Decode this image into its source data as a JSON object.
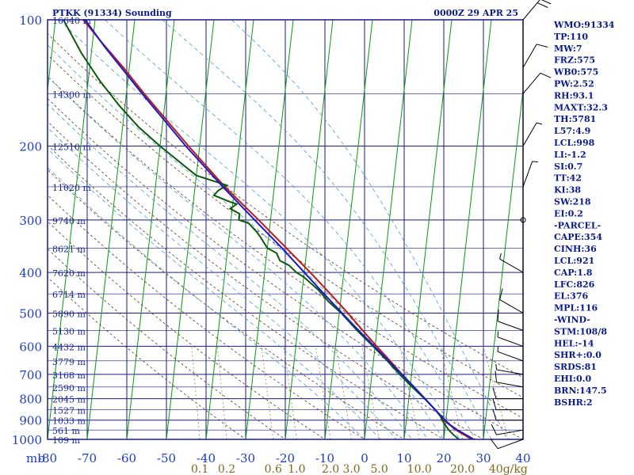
{
  "header": {
    "station": "PTKK (91334) Sounding",
    "time": "0000Z 29 APR 25"
  },
  "chart_data": {
    "type": "line",
    "title": "PTKK (91334) Sounding",
    "subtitle": "0000Z 29 APR 25",
    "xlabel": "",
    "ylabel": "mb",
    "xlim": [
      -80,
      40
    ],
    "ylim": [
      1000,
      100
    ],
    "y_scale": "log",
    "grid": true,
    "pressure_levels": [
      100,
      200,
      300,
      400,
      500,
      600,
      700,
      800,
      900,
      1000
    ],
    "pressure_tick_labels": [
      "100",
      "200",
      "300",
      "400",
      "500",
      "600",
      "700",
      "800",
      "900",
      "1000"
    ],
    "temp_tick_labels": [
      "-80",
      "-70",
      "-60",
      "-50",
      "-40",
      "-30",
      "-20",
      "-10",
      "0",
      "10",
      "20",
      "30",
      "40"
    ],
    "height_labels": [
      {
        "p": 100,
        "text": "16640 m"
      },
      {
        "p": 150,
        "text": "14300 m"
      },
      {
        "p": 200,
        "text": "12510 m"
      },
      {
        "p": 250,
        "text": "11020 m"
      },
      {
        "p": 300,
        "text": "9740 m"
      },
      {
        "p": 350,
        "text": "8621 m"
      },
      {
        "p": 400,
        "text": "7620 m"
      },
      {
        "p": 450,
        "text": "6714 m"
      },
      {
        "p": 500,
        "text": "5890 m"
      },
      {
        "p": 550,
        "text": "5130 m"
      },
      {
        "p": 600,
        "text": "4432 m"
      },
      {
        "p": 650,
        "text": "3779 m"
      },
      {
        "p": 700,
        "text": "3168 m"
      },
      {
        "p": 750,
        "text": "2590 m"
      },
      {
        "p": 800,
        "text": "2045 m"
      },
      {
        "p": 850,
        "text": "1527 m"
      },
      {
        "p": 900,
        "text": "1033 m"
      },
      {
        "p": 950,
        "text": "561 m"
      },
      {
        "p": 1000,
        "text": "109 m"
      }
    ],
    "mixing_ratio_labels": [
      {
        "w": 0.1,
        "text": "0.1"
      },
      {
        "w": 0.2,
        "text": "0.2"
      },
      {
        "w": 0.6,
        "text": "0.6"
      },
      {
        "w": 1.0,
        "text": "1.0"
      },
      {
        "w": 2.0,
        "text": "2.0"
      },
      {
        "w": 3.0,
        "text": "3.0"
      },
      {
        "w": 5.0,
        "text": "5.0"
      },
      {
        "w": 10.0,
        "text": "10.0"
      },
      {
        "w": 20.0,
        "text": "20.0"
      },
      {
        "w": 40.0,
        "text": "40g/kg"
      }
    ],
    "series": [
      {
        "name": "",
        "role": "temperature",
        "color": "#c01818",
        "points": [
          [
            1005,
            27.6
          ],
          [
            1000,
            27
          ],
          [
            975,
            25
          ],
          [
            950,
            22.8
          ],
          [
            925,
            21.2
          ],
          [
            900,
            19.4
          ],
          [
            850,
            17
          ],
          [
            800,
            14
          ],
          [
            750,
            10.8
          ],
          [
            700,
            7.6
          ],
          [
            650,
            4.2
          ],
          [
            600,
            0.4
          ],
          [
            550,
            -3.6
          ],
          [
            500,
            -7.8
          ],
          [
            450,
            -12.8
          ],
          [
            400,
            -18.5
          ],
          [
            350,
            -25.2
          ],
          [
            300,
            -33
          ],
          [
            250,
            -42.5
          ],
          [
            200,
            -52.8
          ],
          [
            150,
            -65.5
          ],
          [
            130,
            -71.5
          ],
          [
            115,
            -77
          ],
          [
            100,
            -83
          ]
        ]
      },
      {
        "name": "",
        "role": "dewpoint",
        "color": "#0a5a0a",
        "points": [
          [
            1005,
            25
          ],
          [
            1000,
            23.8
          ],
          [
            975,
            22.3
          ],
          [
            950,
            21
          ],
          [
            925,
            20
          ],
          [
            900,
            19
          ],
          [
            880,
            18.5
          ],
          [
            850,
            17
          ],
          [
            800,
            14
          ],
          [
            750,
            10.5
          ],
          [
            700,
            7
          ],
          [
            650,
            3.5
          ],
          [
            600,
            -0.5
          ],
          [
            550,
            -5
          ],
          [
            500,
            -9.5
          ],
          [
            470,
            -13
          ],
          [
            440,
            -16
          ],
          [
            410,
            -20
          ],
          [
            400,
            -22
          ],
          [
            385,
            -24
          ],
          [
            375,
            -26.5
          ],
          [
            360,
            -27.5
          ],
          [
            350,
            -30
          ],
          [
            340,
            -31
          ],
          [
            330,
            -32
          ],
          [
            320,
            -33.2
          ],
          [
            305,
            -35.5
          ],
          [
            300,
            -38
          ],
          [
            290,
            -38
          ],
          [
            282,
            -40.5
          ],
          [
            275,
            -39
          ],
          [
            270,
            -41.5
          ],
          [
            262,
            -45
          ],
          [
            255,
            -44
          ],
          [
            248,
            -42
          ],
          [
            235,
            -50
          ],
          [
            200,
            -60
          ],
          [
            180,
            -66
          ],
          [
            160,
            -71.5
          ],
          [
            140,
            -77
          ],
          [
            120,
            -82.5
          ],
          [
            100,
            -88
          ]
        ]
      },
      {
        "name": "",
        "role": "parcel",
        "color": "#1a1acc",
        "points": [
          [
            1005,
            28.6
          ],
          [
            1000,
            27.6
          ],
          [
            950,
            23.2
          ],
          [
            921,
            21
          ],
          [
            900,
            19.8
          ],
          [
            850,
            17
          ],
          [
            800,
            14.1
          ],
          [
            750,
            11
          ],
          [
            700,
            7.6
          ],
          [
            650,
            3.8
          ],
          [
            600,
            -0.2
          ],
          [
            550,
            -4.6
          ],
          [
            500,
            -9.3
          ],
          [
            450,
            -14.4
          ],
          [
            400,
            -20
          ],
          [
            350,
            -26.3
          ],
          [
            300,
            -34
          ],
          [
            250,
            -43
          ],
          [
            200,
            -53.5
          ],
          [
            150,
            -66
          ],
          [
            116,
            -76.8
          ],
          [
            100,
            -82.5
          ]
        ]
      }
    ],
    "wind_barbs": [
      {
        "p": 1000,
        "spd": 10,
        "dir": 250
      },
      {
        "p": 950,
        "spd": 10,
        "dir": 260
      },
      {
        "p": 900,
        "spd": 10,
        "dir": 270
      },
      {
        "p": 850,
        "spd": 10,
        "dir": 270
      },
      {
        "p": 800,
        "spd": 10,
        "dir": 270
      },
      {
        "p": 750,
        "spd": 10,
        "dir": 280
      },
      {
        "p": 700,
        "spd": 5,
        "dir": 280
      },
      {
        "p": 650,
        "spd": 5,
        "dir": 290
      },
      {
        "p": 600,
        "spd": 5,
        "dir": 290
      },
      {
        "p": 550,
        "spd": 10,
        "dir": 290
      },
      {
        "p": 500,
        "spd": 10,
        "dir": 300
      },
      {
        "p": 400,
        "spd": 5,
        "dir": 300
      },
      {
        "p": 300,
        "spd": 0,
        "dir": 0
      },
      {
        "p": 250,
        "spd": 5,
        "dir": 20
      },
      {
        "p": 200,
        "spd": 5,
        "dir": 30
      },
      {
        "p": 150,
        "spd": 10,
        "dir": 40
      },
      {
        "p": 130,
        "spd": 10,
        "dir": 30
      },
      {
        "p": 100,
        "spd": 20,
        "dir": 40
      }
    ],
    "indices": [
      "WMO:91334",
      "TP:110",
      "MW:7",
      "FRZ:575",
      "WB0:575",
      "PW:2.52",
      "RH:93.1",
      "MAXT:32.3",
      "TH:5781",
      "L57:4.9",
      "LCL:998",
      "LI:-1.2",
      "SI:0.7",
      "TT:42",
      "KI:38",
      "SW:218",
      "EI:0.2",
      "-PARCEL-",
      "CAPE:354",
      "CINH:36",
      "LCL:921",
      "CAP:1.8",
      "LFC:826",
      "EL:376",
      "MPL:116",
      "-WIND-",
      "STM:108/8",
      "HEL:-14",
      "SHR+:0.0",
      "SRDS:81",
      "EHI:0.0",
      "BRN:147.5",
      "BSHR:2"
    ]
  },
  "colors": {
    "frame": "#1a1a8a",
    "isobar": "#1a1a8a",
    "isotherm": "#0a9a0a",
    "dry_adiabat": "#5a3a1a",
    "moist_adiabat": "#4a9ad8",
    "mixing_ratio": "#a08a3a"
  }
}
